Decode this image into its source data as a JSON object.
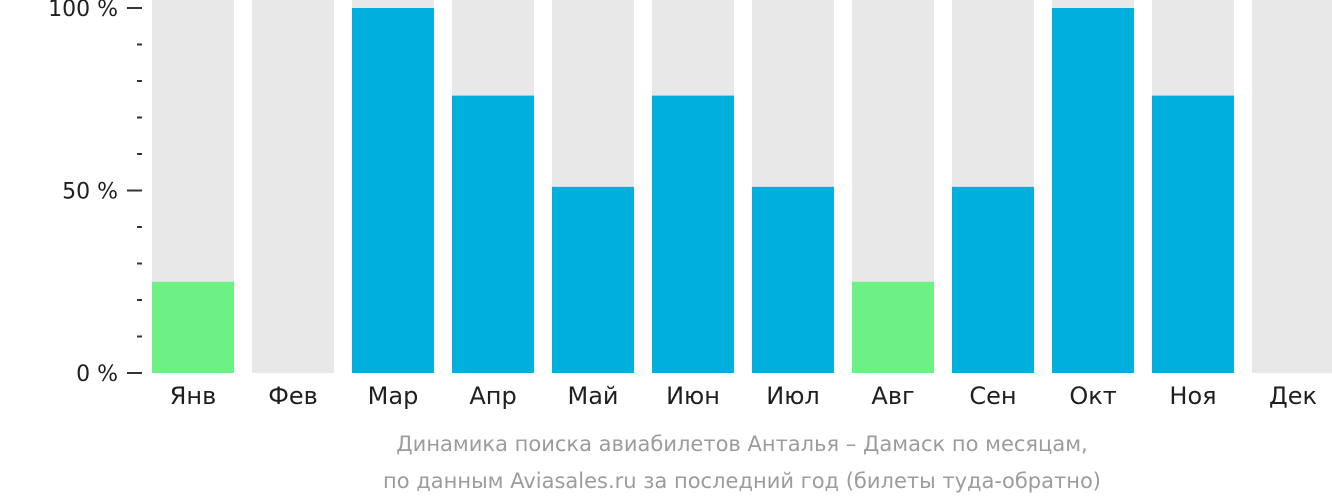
{
  "chart_data": {
    "type": "bar",
    "categories": [
      "Янв",
      "Фев",
      "Мар",
      "Апр",
      "Май",
      "Июн",
      "Июл",
      "Авг",
      "Сен",
      "Окт",
      "Ноя",
      "Дек"
    ],
    "values": [
      25,
      0,
      100,
      76,
      51,
      76,
      51,
      25,
      51,
      100,
      76,
      0
    ],
    "bar_colors": [
      "#6cf184",
      "#00b0dc",
      "#00b0dc",
      "#00b0dc",
      "#00b0dc",
      "#00b0dc",
      "#00b0dc",
      "#6cf184",
      "#00b0dc",
      "#00b0dc",
      "#00b0dc",
      "#00b0dc"
    ],
    "background_bar_color": "#e8e8e8",
    "ylim": [
      0,
      100
    ],
    "yticks": [
      {
        "value": 0,
        "label": "0 %"
      },
      {
        "value": 50,
        "label": "50 %"
      },
      {
        "value": 100,
        "label": "100 %"
      }
    ],
    "minor_ytick_step": 10,
    "grid": false,
    "caption_line1": "Динамика поиска авиабилетов Анталья – Дамаск по месяцам,",
    "caption_line2": "по данным Aviasales.ru за последний год (билеты туда-обратно)"
  }
}
